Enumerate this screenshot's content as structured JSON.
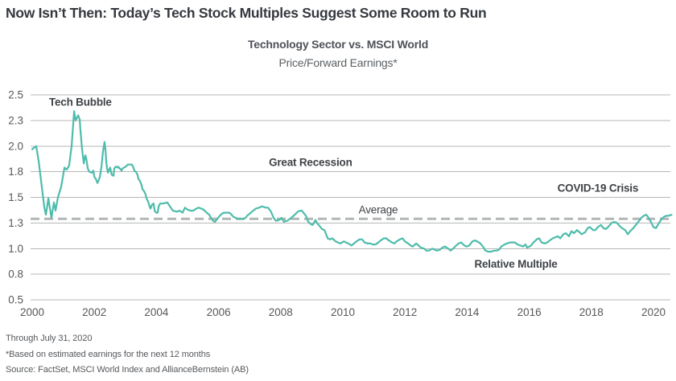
{
  "header": {
    "title": "Now Isn’t Then: Today’s Tech Stock Multiples Suggest Some Room to Run",
    "subtitle": "Technology Sector vs. MSCI World",
    "subtitle2": "Price/Forward Earnings*"
  },
  "footer": {
    "line1": "Through July 31, 2020",
    "line2": "*Based on estimated earnings for the next 12 months",
    "line3": "Source: FactSet, MSCI World Index and AllianceBernstein (AB)"
  },
  "colors": {
    "line": "#4ebcab",
    "grid": "#b7b7b7",
    "average": "#b2b6b5",
    "title": "#35393f",
    "tick_text": "#55585c",
    "annotation": "#3f4347",
    "background": "#ffffff"
  },
  "chart_data": {
    "type": "line",
    "title": "Technology Sector vs. MSCI World",
    "subtitle": "Price/Forward Earnings*",
    "series_name": "Relative Multiple (Technology Sector / MSCI World, Price/Forward Earnings)",
    "grid": true,
    "legend_position": "none",
    "xlabel": "",
    "ylabel": "",
    "ylim": [
      0.5,
      2.5
    ],
    "x_range": [
      2000,
      2020.58
    ],
    "average_value": 1.29,
    "average_label": "Average",
    "y_ticks": [
      {
        "v": 2.5,
        "label": "2.5"
      },
      {
        "v": 2.25,
        "label": "2.3"
      },
      {
        "v": 2.0,
        "label": "2.0"
      },
      {
        "v": 1.75,
        "label": "1.8"
      },
      {
        "v": 1.5,
        "label": "1.5"
      },
      {
        "v": 1.25,
        "label": "1.3"
      },
      {
        "v": 1.0,
        "label": "1.0"
      },
      {
        "v": 0.75,
        "label": "0.8"
      },
      {
        "v": 0.5,
        "label": "0.5"
      }
    ],
    "x_ticks": [
      2000,
      2002,
      2004,
      2006,
      2008,
      2010,
      2012,
      2014,
      2016,
      2018,
      2020
    ],
    "annotations": [
      {
        "label": "Tech Bubble",
        "year": 2001.55,
        "value": 2.43,
        "bold": true
      },
      {
        "label": "Great Recession",
        "year": 2008.96,
        "value": 1.84,
        "bold": true
      },
      {
        "label": "Average",
        "year": 2011.14,
        "value": 1.38,
        "bold": false
      },
      {
        "label": "COVID-19 Crisis",
        "year": 2018.21,
        "value": 1.59,
        "bold": true
      },
      {
        "label": "Relative Multiple",
        "year": 2015.57,
        "value": 0.85,
        "bold": true
      }
    ],
    "points": [
      [
        2000.0,
        1.97
      ],
      [
        2000.13,
        2.0
      ],
      [
        2000.21,
        1.85
      ],
      [
        2000.31,
        1.6
      ],
      [
        2000.39,
        1.4
      ],
      [
        2000.44,
        1.33
      ],
      [
        2000.52,
        1.49
      ],
      [
        2000.62,
        1.3
      ],
      [
        2000.7,
        1.45
      ],
      [
        2000.75,
        1.37
      ],
      [
        2000.83,
        1.5
      ],
      [
        2000.93,
        1.6
      ],
      [
        2001.04,
        1.79
      ],
      [
        2001.11,
        1.77
      ],
      [
        2001.19,
        1.81
      ],
      [
        2001.27,
        2.0
      ],
      [
        2001.35,
        2.34
      ],
      [
        2001.4,
        2.25
      ],
      [
        2001.48,
        2.3
      ],
      [
        2001.53,
        2.26
      ],
      [
        2001.55,
        2.17
      ],
      [
        2001.61,
        1.96
      ],
      [
        2001.66,
        1.83
      ],
      [
        2001.71,
        1.91
      ],
      [
        2001.74,
        1.88
      ],
      [
        2001.79,
        1.78
      ],
      [
        2001.84,
        1.75
      ],
      [
        2001.92,
        1.74
      ],
      [
        2001.97,
        1.76
      ],
      [
        2002.0,
        1.7
      ],
      [
        2002.05,
        1.68
      ],
      [
        2002.1,
        1.64
      ],
      [
        2002.12,
        1.65
      ],
      [
        2002.18,
        1.7
      ],
      [
        2002.23,
        1.8
      ],
      [
        2002.28,
        1.95
      ],
      [
        2002.33,
        2.04
      ],
      [
        2002.36,
        1.96
      ],
      [
        2002.38,
        1.86
      ],
      [
        2002.41,
        1.78
      ],
      [
        2002.44,
        1.74
      ],
      [
        2002.49,
        1.78
      ],
      [
        2002.51,
        1.79
      ],
      [
        2002.56,
        1.72
      ],
      [
        2002.62,
        1.71
      ],
      [
        2002.64,
        1.78
      ],
      [
        2002.69,
        1.8
      ],
      [
        2002.75,
        1.79
      ],
      [
        2002.77,
        1.8
      ],
      [
        2002.82,
        1.78
      ],
      [
        2002.88,
        1.76
      ],
      [
        2002.9,
        1.78
      ],
      [
        2003.01,
        1.8
      ],
      [
        2003.08,
        1.82
      ],
      [
        2003.16,
        1.82
      ],
      [
        2003.21,
        1.82
      ],
      [
        2003.26,
        1.79
      ],
      [
        2003.29,
        1.76
      ],
      [
        2003.34,
        1.75
      ],
      [
        2003.39,
        1.72
      ],
      [
        2003.42,
        1.68
      ],
      [
        2003.47,
        1.66
      ],
      [
        2003.52,
        1.62
      ],
      [
        2003.55,
        1.58
      ],
      [
        2003.6,
        1.56
      ],
      [
        2003.65,
        1.53
      ],
      [
        2003.68,
        1.49
      ],
      [
        2003.73,
        1.46
      ],
      [
        2003.78,
        1.41
      ],
      [
        2003.81,
        1.39
      ],
      [
        2003.86,
        1.43
      ],
      [
        2003.91,
        1.44
      ],
      [
        2003.94,
        1.37
      ],
      [
        2003.99,
        1.35
      ],
      [
        2004.04,
        1.35
      ],
      [
        2004.07,
        1.41
      ],
      [
        2004.12,
        1.44
      ],
      [
        2004.22,
        1.44
      ],
      [
        2004.35,
        1.45
      ],
      [
        2004.46,
        1.4
      ],
      [
        2004.53,
        1.37
      ],
      [
        2004.66,
        1.36
      ],
      [
        2004.74,
        1.37
      ],
      [
        2004.84,
        1.35
      ],
      [
        2004.92,
        1.4
      ],
      [
        2005.0,
        1.38
      ],
      [
        2005.1,
        1.37
      ],
      [
        2005.18,
        1.37
      ],
      [
        2005.29,
        1.39
      ],
      [
        2005.36,
        1.4
      ],
      [
        2005.44,
        1.39
      ],
      [
        2005.52,
        1.38
      ],
      [
        2005.62,
        1.35
      ],
      [
        2005.7,
        1.33
      ],
      [
        2005.78,
        1.29
      ],
      [
        2005.83,
        1.27
      ],
      [
        2005.88,
        1.26
      ],
      [
        2005.96,
        1.29
      ],
      [
        2006.04,
        1.32
      ],
      [
        2006.11,
        1.34
      ],
      [
        2006.17,
        1.35
      ],
      [
        2006.24,
        1.35
      ],
      [
        2006.35,
        1.35
      ],
      [
        2006.42,
        1.33
      ],
      [
        2006.48,
        1.31
      ],
      [
        2006.55,
        1.3
      ],
      [
        2006.66,
        1.29
      ],
      [
        2006.74,
        1.29
      ],
      [
        2006.79,
        1.29
      ],
      [
        2006.87,
        1.3
      ],
      [
        2006.92,
        1.32
      ],
      [
        2007.0,
        1.34
      ],
      [
        2007.07,
        1.36
      ],
      [
        2007.12,
        1.37
      ],
      [
        2007.2,
        1.39
      ],
      [
        2007.31,
        1.4
      ],
      [
        2007.38,
        1.41
      ],
      [
        2007.43,
        1.41
      ],
      [
        2007.51,
        1.4
      ],
      [
        2007.59,
        1.4
      ],
      [
        2007.64,
        1.38
      ],
      [
        2007.69,
        1.36
      ],
      [
        2007.77,
        1.3
      ],
      [
        2007.85,
        1.27
      ],
      [
        2007.95,
        1.28
      ],
      [
        2008.03,
        1.3
      ],
      [
        2008.11,
        1.26
      ],
      [
        2008.16,
        1.27
      ],
      [
        2008.21,
        1.27
      ],
      [
        2008.29,
        1.29
      ],
      [
        2008.34,
        1.3
      ],
      [
        2008.45,
        1.33
      ],
      [
        2008.55,
        1.36
      ],
      [
        2008.63,
        1.37
      ],
      [
        2008.68,
        1.37
      ],
      [
        2008.76,
        1.34
      ],
      [
        2008.81,
        1.32
      ],
      [
        2008.89,
        1.26
      ],
      [
        2008.96,
        1.24
      ],
      [
        2009.02,
        1.23
      ],
      [
        2009.07,
        1.25
      ],
      [
        2009.12,
        1.28
      ],
      [
        2009.17,
        1.25
      ],
      [
        2009.25,
        1.22
      ],
      [
        2009.33,
        1.19
      ],
      [
        2009.41,
        1.18
      ],
      [
        2009.46,
        1.14
      ],
      [
        2009.51,
        1.1
      ],
      [
        2009.59,
        1.09
      ],
      [
        2009.66,
        1.1
      ],
      [
        2009.77,
        1.07
      ],
      [
        2009.84,
        1.06
      ],
      [
        2009.92,
        1.05
      ],
      [
        2010.03,
        1.07
      ],
      [
        2010.1,
        1.06
      ],
      [
        2010.18,
        1.05
      ],
      [
        2010.28,
        1.03
      ],
      [
        2010.36,
        1.05
      ],
      [
        2010.44,
        1.07
      ],
      [
        2010.54,
        1.09
      ],
      [
        2010.62,
        1.09
      ],
      [
        2010.7,
        1.06
      ],
      [
        2010.8,
        1.05
      ],
      [
        2010.88,
        1.05
      ],
      [
        2010.96,
        1.04
      ],
      [
        2011.06,
        1.04
      ],
      [
        2011.14,
        1.06
      ],
      [
        2011.22,
        1.08
      ],
      [
        2011.32,
        1.1
      ],
      [
        2011.4,
        1.1
      ],
      [
        2011.48,
        1.08
      ],
      [
        2011.58,
        1.06
      ],
      [
        2011.66,
        1.05
      ],
      [
        2011.73,
        1.07
      ],
      [
        2011.84,
        1.09
      ],
      [
        2011.92,
        1.1
      ],
      [
        2012.0,
        1.07
      ],
      [
        2012.1,
        1.05
      ],
      [
        2012.18,
        1.03
      ],
      [
        2012.25,
        1.02
      ],
      [
        2012.36,
        1.05
      ],
      [
        2012.44,
        1.03
      ],
      [
        2012.51,
        1.01
      ],
      [
        2012.62,
        1.0
      ],
      [
        2012.69,
        0.98
      ],
      [
        2012.77,
        0.98
      ],
      [
        2012.88,
        1.0
      ],
      [
        2012.95,
        0.99
      ],
      [
        2013.03,
        0.98
      ],
      [
        2013.13,
        0.99
      ],
      [
        2013.21,
        1.01
      ],
      [
        2013.29,
        1.02
      ],
      [
        2013.39,
        1.0
      ],
      [
        2013.47,
        0.98
      ],
      [
        2013.55,
        1.0
      ],
      [
        2013.65,
        1.03
      ],
      [
        2013.73,
        1.05
      ],
      [
        2013.81,
        1.06
      ],
      [
        2013.91,
        1.03
      ],
      [
        2013.99,
        1.02
      ],
      [
        2014.07,
        1.03
      ],
      [
        2014.17,
        1.07
      ],
      [
        2014.25,
        1.08
      ],
      [
        2014.33,
        1.07
      ],
      [
        2014.43,
        1.05
      ],
      [
        2014.51,
        1.02
      ],
      [
        2014.59,
        0.98
      ],
      [
        2014.69,
        0.97
      ],
      [
        2014.77,
        0.97
      ],
      [
        2014.87,
        0.98
      ],
      [
        2014.95,
        0.98
      ],
      [
        2015.03,
        0.99
      ],
      [
        2015.1,
        1.02
      ],
      [
        2015.21,
        1.04
      ],
      [
        2015.28,
        1.05
      ],
      [
        2015.39,
        1.06
      ],
      [
        2015.47,
        1.06
      ],
      [
        2015.54,
        1.06
      ],
      [
        2015.62,
        1.04
      ],
      [
        2015.72,
        1.03
      ],
      [
        2015.8,
        1.02
      ],
      [
        2015.88,
        1.04
      ],
      [
        2015.93,
        1.01
      ],
      [
        2016.01,
        1.02
      ],
      [
        2016.06,
        1.03
      ],
      [
        2016.14,
        1.06
      ],
      [
        2016.24,
        1.09
      ],
      [
        2016.32,
        1.1
      ],
      [
        2016.4,
        1.06
      ],
      [
        2016.5,
        1.05
      ],
      [
        2016.58,
        1.06
      ],
      [
        2016.66,
        1.08
      ],
      [
        2016.76,
        1.1
      ],
      [
        2016.84,
        1.11
      ],
      [
        2016.92,
        1.12
      ],
      [
        2017.0,
        1.1
      ],
      [
        2017.1,
        1.14
      ],
      [
        2017.18,
        1.15
      ],
      [
        2017.28,
        1.12
      ],
      [
        2017.36,
        1.17
      ],
      [
        2017.44,
        1.15
      ],
      [
        2017.54,
        1.18
      ],
      [
        2017.62,
        1.16
      ],
      [
        2017.69,
        1.14
      ],
      [
        2017.8,
        1.16
      ],
      [
        2017.88,
        1.2
      ],
      [
        2017.95,
        1.21
      ],
      [
        2018.06,
        1.18
      ],
      [
        2018.13,
        1.18
      ],
      [
        2018.21,
        1.21
      ],
      [
        2018.31,
        1.23
      ],
      [
        2018.39,
        1.2
      ],
      [
        2018.47,
        1.19
      ],
      [
        2018.57,
        1.22
      ],
      [
        2018.65,
        1.25
      ],
      [
        2018.73,
        1.26
      ],
      [
        2018.83,
        1.25
      ],
      [
        2018.91,
        1.22
      ],
      [
        2018.99,
        1.2
      ],
      [
        2019.09,
        1.18
      ],
      [
        2019.17,
        1.14
      ],
      [
        2019.25,
        1.17
      ],
      [
        2019.35,
        1.2
      ],
      [
        2019.43,
        1.23
      ],
      [
        2019.51,
        1.26
      ],
      [
        2019.61,
        1.3
      ],
      [
        2019.69,
        1.32
      ],
      [
        2019.77,
        1.33
      ],
      [
        2019.82,
        1.31
      ],
      [
        2019.9,
        1.27
      ],
      [
        2020.0,
        1.21
      ],
      [
        2020.08,
        1.2
      ],
      [
        2020.16,
        1.24
      ],
      [
        2020.26,
        1.29
      ],
      [
        2020.34,
        1.31
      ],
      [
        2020.42,
        1.32
      ],
      [
        2020.5,
        1.32
      ],
      [
        2020.58,
        1.33
      ]
    ]
  }
}
